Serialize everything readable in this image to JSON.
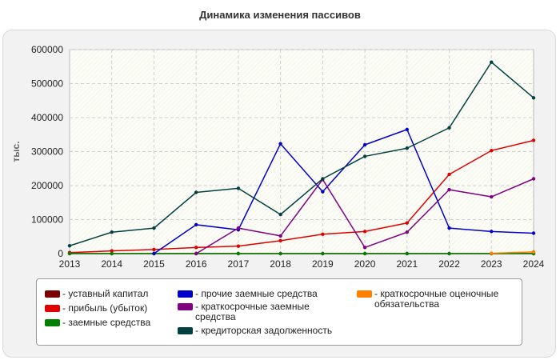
{
  "chart_data": {
    "type": "line",
    "title": "Динамика изменения пассивов",
    "ylabel": "тыс.",
    "xlabel": "",
    "x": [
      "2013",
      "2014",
      "2015",
      "2016",
      "2017",
      "2018",
      "2019",
      "2020",
      "2021",
      "2022",
      "2023",
      "2024"
    ],
    "ylim": [
      0,
      600000
    ],
    "yticks": [
      "0",
      "100000",
      "200000",
      "300000",
      "400000",
      "500000",
      "600000"
    ],
    "grid": true,
    "legend_position": "bottom",
    "series": [
      {
        "name": "уставный капитал",
        "color": "#7a0000",
        "values": [
          0,
          0,
          0,
          0,
          0,
          0,
          0,
          0,
          0,
          0,
          0,
          0
        ]
      },
      {
        "name": "прибыль (убыток)",
        "color": "#e00000",
        "values": [
          3000,
          8000,
          12000,
          18000,
          22000,
          38000,
          57000,
          65000,
          90000,
          233000,
          303000,
          333000
        ]
      },
      {
        "name": "заемные средства",
        "color": "#008000",
        "values": [
          0,
          0,
          0,
          0,
          0,
          0,
          0,
          0,
          0,
          0,
          0,
          0
        ]
      },
      {
        "name": "прочие заемные средства",
        "color": "#0000cc",
        "values": [
          null,
          null,
          0,
          85000,
          70000,
          323000,
          182000,
          320000,
          365000,
          75000,
          65000,
          60000
        ]
      },
      {
        "name": "краткосрочные заемные средства",
        "color": "#800080",
        "values": [
          null,
          null,
          null,
          0,
          75000,
          52000,
          218000,
          18000,
          63000,
          188000,
          167000,
          220000
        ]
      },
      {
        "name": "кредиторская задолженность",
        "color": "#004040",
        "values": [
          23000,
          63000,
          75000,
          180000,
          192000,
          115000,
          220000,
          286000,
          310000,
          370000,
          563000,
          458000
        ]
      },
      {
        "name": "краткосрочные оценочные обязательства",
        "color": "#ff8000",
        "values": [
          null,
          null,
          null,
          null,
          null,
          null,
          null,
          null,
          null,
          null,
          1000,
          5000
        ]
      }
    ]
  }
}
